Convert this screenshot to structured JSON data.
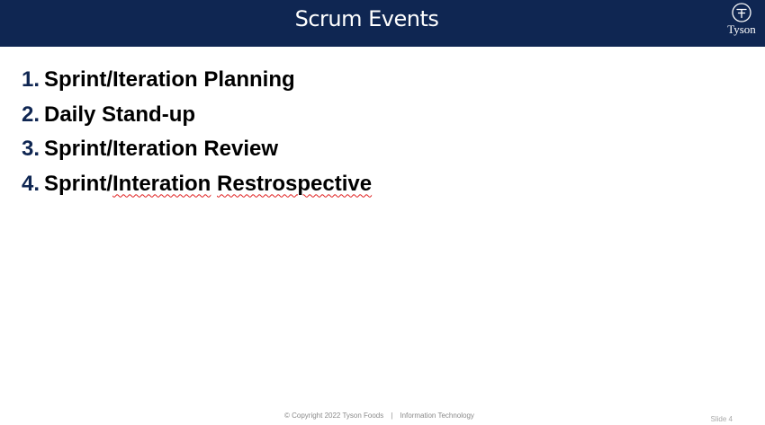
{
  "header": {
    "title": "Scrum Events",
    "logo_text": "Tyson",
    "logo_icon": "tyson-logo-icon",
    "background_color": "#0f2652"
  },
  "events": [
    {
      "number": "1.",
      "label": "Sprint/Iteration Planning"
    },
    {
      "number": "2.",
      "label": "Daily Stand-up"
    },
    {
      "number": "3.",
      "label": "Sprint/Iteration Review"
    },
    {
      "number": "4.",
      "label_words": [
        "Sprint/",
        "Interation",
        " ",
        "Restrospective"
      ]
    }
  ],
  "footer": {
    "copyright": "© Copyright 2022 Tyson Foods",
    "separator": "|",
    "department": "Information Technology",
    "slide_number": "Slide 4"
  },
  "colors": {
    "number_color": "#0f2652",
    "spellcheck_underline": "#e02020"
  }
}
